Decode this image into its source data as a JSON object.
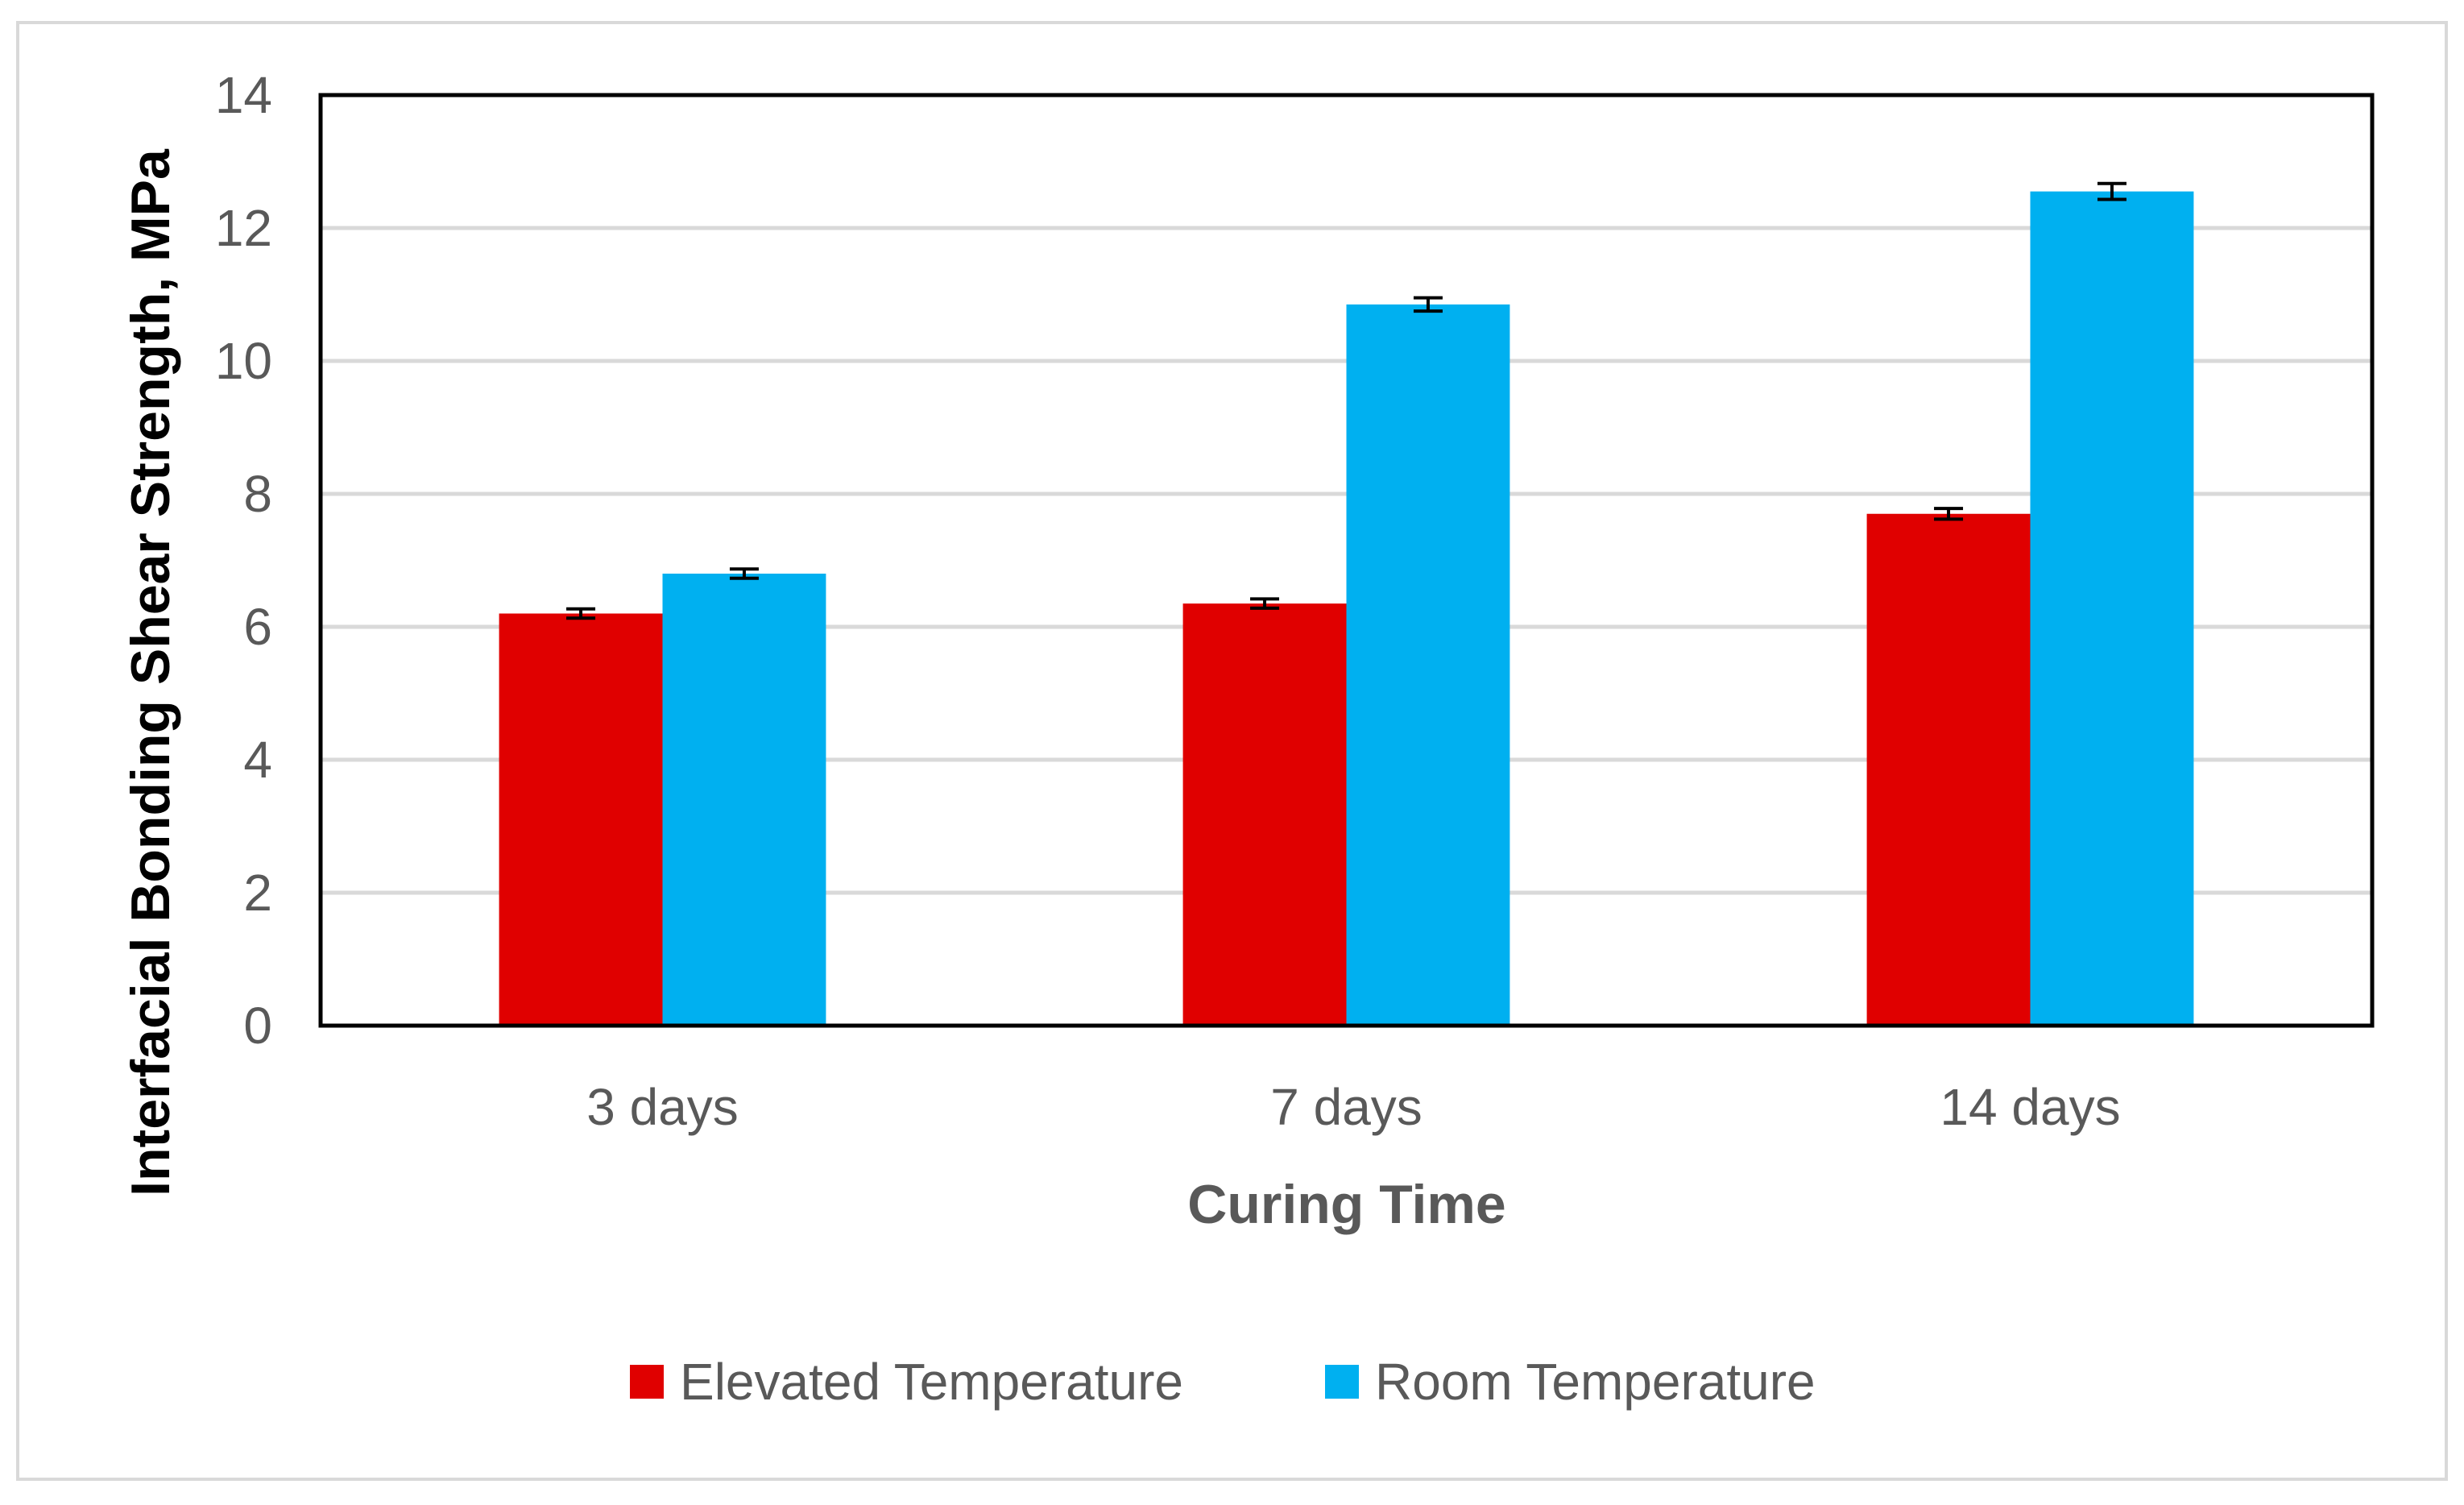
{
  "colors": {
    "elevated": "#E00000",
    "room": "#00B0F0",
    "grid": "#D9D9D9",
    "frame": "#000000",
    "error_bar": "#000000"
  },
  "chart_data": {
    "type": "bar",
    "title": "",
    "xlabel": "Curing Time",
    "ylabel": "Interfacial Bonding Shear Strength, MPa",
    "categories": [
      "3 days",
      "7 days",
      "14 days"
    ],
    "ylim": [
      0,
      14
    ],
    "yticks": [
      0,
      2,
      4,
      6,
      8,
      10,
      12,
      14
    ],
    "grid": true,
    "legend_position": "bottom",
    "series": [
      {
        "name": "Elevated Temperature",
        "color_key": "elevated",
        "values": [
          6.2,
          6.35,
          7.7
        ],
        "errors": [
          0.07,
          0.07,
          0.08
        ]
      },
      {
        "name": "Room Temperature",
        "color_key": "room",
        "values": [
          6.8,
          10.85,
          12.55
        ],
        "errors": [
          0.07,
          0.1,
          0.12
        ]
      }
    ]
  }
}
